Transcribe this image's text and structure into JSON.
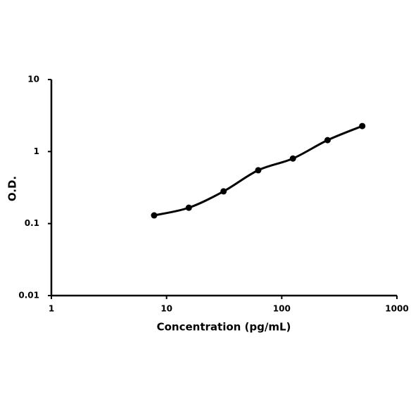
{
  "chart_data": {
    "type": "line",
    "x_label": "Concentration (pg/mL)",
    "y_label": "O.D.",
    "x": [
      7.8,
      15.6,
      31.25,
      62.5,
      125,
      250,
      500
    ],
    "series": [
      {
        "color": "#000000",
        "values": [
          0.13,
          0.166,
          0.28,
          0.55,
          0.8,
          1.44,
          2.26
        ]
      }
    ],
    "xlim": [
      1,
      1000
    ],
    "xticks": [
      1,
      10,
      100,
      1000
    ],
    "ylim": [
      0.01,
      10
    ],
    "yticks": [
      0.01,
      0.1,
      1,
      10
    ],
    "xscale": "log",
    "yscale": "log",
    "grid": false
  }
}
